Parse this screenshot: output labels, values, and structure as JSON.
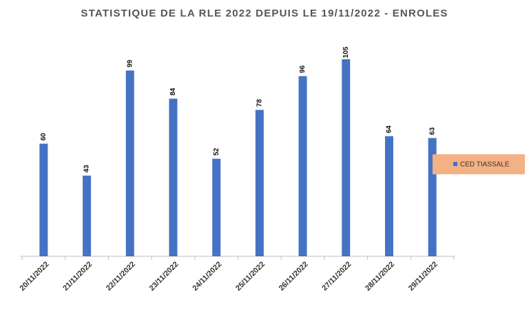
{
  "chart_data": {
    "type": "bar",
    "title": "STATISTIQUE DE LA RLE 2022 DEPUIS LE 19/11/2022 - ENROLES",
    "categories": [
      "20/11/2022",
      "21/11/2022",
      "22/11/2022",
      "23/11/2022",
      "24/11/2022",
      "25/11/2022",
      "26/11/2022",
      "27/11/2022",
      "28/11/2022",
      "29/11/2022"
    ],
    "series": [
      {
        "name": "CED TIASSALE",
        "color": "#4472c4",
        "values": [
          60,
          43,
          99,
          84,
          52,
          78,
          96,
          105,
          64,
          63
        ]
      }
    ],
    "ylim": [
      0,
      105
    ],
    "legend": "right"
  }
}
